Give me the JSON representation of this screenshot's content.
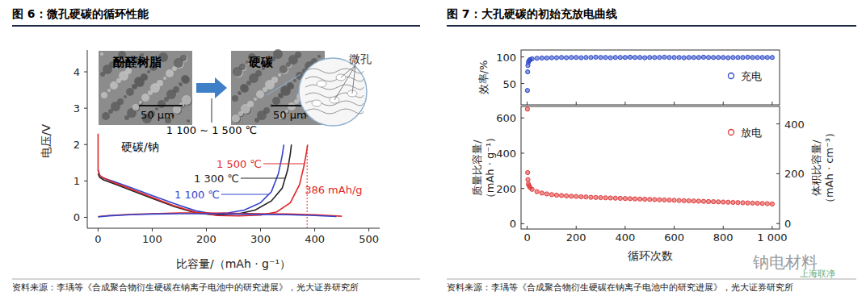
{
  "chart_data": [
    {
      "type": "line",
      "title": "图 6：微孔硬碳的循环性能",
      "source": "资料来源：李瑀等《合成聚合物衍生硬碳在钠离子电池中的研究进展》，光大证券研究所",
      "xlabel": "比容量/（mAh · g⁻¹）",
      "ylabel": "电压/V",
      "xlim": [
        -20,
        520
      ],
      "xticks": [
        0,
        100,
        200,
        300,
        400,
        500
      ],
      "ylim": [
        -0.3,
        4.6
      ],
      "yticks": [
        0,
        1,
        2,
        3,
        4
      ],
      "series": [
        {
          "name": "1 100 ℃",
          "color": "#3344cc",
          "x": [
            0,
            3,
            10,
            30,
            60,
            100,
            140,
            180,
            210,
            240,
            270,
            300,
            320,
            333,
            340,
            343
          ],
          "values": [
            1.3,
            1.15,
            1.08,
            0.98,
            0.82,
            0.6,
            0.38,
            0.18,
            0.1,
            0.12,
            0.2,
            0.4,
            0.7,
            1.2,
            1.7,
            2.0
          ]
        },
        {
          "name": "1 300 ℃",
          "color": "#222222",
          "x": [
            0,
            3,
            10,
            30,
            60,
            100,
            140,
            180,
            220,
            260,
            290,
            320,
            340,
            350,
            355,
            357
          ],
          "values": [
            1.2,
            1.1,
            1.03,
            0.92,
            0.75,
            0.52,
            0.3,
            0.12,
            0.06,
            0.1,
            0.2,
            0.45,
            0.8,
            1.3,
            1.75,
            2.0
          ]
        },
        {
          "name": "1 500 ℃",
          "color": "#e02828",
          "x": [
            0,
            0,
            3,
            10,
            30,
            60,
            100,
            140,
            180,
            220,
            260,
            300,
            330,
            355,
            372,
            380,
            385,
            387
          ],
          "values": [
            2.3,
            1.3,
            1.15,
            1.08,
            0.95,
            0.78,
            0.55,
            0.32,
            0.14,
            0.05,
            0.04,
            0.06,
            0.15,
            0.4,
            0.9,
            1.4,
            1.8,
            2.0
          ]
        },
        {
          "color": "#e02828",
          "x": [
            0,
            20,
            60,
            100,
            150,
            200,
            250,
            300,
            350,
            400,
            450
          ],
          "values": [
            0.02,
            0.05,
            0.08,
            0.1,
            0.12,
            0.12,
            0.11,
            0.1,
            0.09,
            0.07,
            0.03
          ]
        },
        {
          "color": "#3344cc",
          "x": [
            0,
            20,
            60,
            100,
            150,
            200,
            250,
            300,
            350,
            400,
            440
          ],
          "values": [
            0.01,
            0.04,
            0.07,
            0.09,
            0.1,
            0.1,
            0.09,
            0.08,
            0.07,
            0.05,
            0.02
          ]
        }
      ],
      "annotations": [
        {
          "text": "386 mAh/g",
          "x": 386,
          "color": "#e02828"
        }
      ],
      "inset": {
        "left_label": "酚醛树脂",
        "right_label": "硬碳",
        "scale_bar": "50 μm",
        "pore_label": "微孔",
        "process": "1 100 ~ 1 500 ℃",
        "system": "硬碳/钠"
      }
    },
    {
      "type": "scatter",
      "title": "图 7：大孔硬碳的初始充放电曲线",
      "source": "资料来源：李瑀等《合成聚合物衍生硬碳在钠离子电池中的研究进展》，光大证券研究所",
      "ylabel": "效率/%",
      "xlim": [
        -25,
        1030
      ],
      "xticks": [
        0,
        200,
        400,
        600,
        800,
        {
          "value": 1000,
          "label": "1 000"
        }
      ],
      "ylim": [
        10,
        113
      ],
      "yticks": [
        50,
        100
      ],
      "tick_labels": "y",
      "legend": "upper right",
      "x": [
        1,
        2,
        3,
        5,
        8,
        12,
        20,
        40,
        60,
        80,
        100,
        120,
        140,
        160,
        180,
        200,
        220,
        240,
        260,
        280,
        300,
        320,
        340,
        360,
        380,
        400,
        420,
        440,
        460,
        480,
        500,
        520,
        540,
        560,
        580,
        600,
        620,
        640,
        660,
        680,
        700,
        720,
        740,
        760,
        780,
        800,
        820,
        840,
        860,
        880,
        900,
        920,
        940,
        960,
        980,
        1000
      ],
      "series": [
        {
          "name": "充电",
          "color": "#2a48c8",
          "marker": "o",
          "values": [
            37,
            72,
            84,
            90,
            93,
            95,
            96.5,
            97.5,
            98,
            98,
            98.5,
            98.5,
            99,
            98.5,
            99,
            99,
            98.5,
            99,
            99,
            99.5,
            99,
            99,
            98.5,
            99,
            99,
            99,
            99.5,
            99,
            99,
            98.5,
            99,
            99,
            99,
            99.5,
            99,
            99,
            99,
            98.5,
            99,
            99,
            99,
            99.5,
            99,
            99,
            99,
            99,
            98.5,
            99,
            99,
            99,
            99.5,
            99,
            99,
            99,
            99,
            99
          ]
        }
      ]
    },
    {
      "type": "scatter",
      "xlabel": "循环次数",
      "ylabel": "质量比容量/\n（mAh · g⁻¹）",
      "y2label": "体积比容量/\n（mAh · cm⁻³）",
      "xlim": [
        -25,
        1030
      ],
      "xticks": [
        0,
        200,
        400,
        600,
        800,
        {
          "value": 1000,
          "label": "1 000"
        }
      ],
      "ylim": [
        -30,
        665
      ],
      "yticks": [
        0,
        200,
        400,
        600
      ],
      "y2lim": [
        -22,
        470
      ],
      "y2ticks": [
        0,
        200,
        400
      ],
      "legend": "upper right",
      "x": [
        1,
        2,
        3,
        5,
        8,
        12,
        20,
        40,
        60,
        80,
        100,
        120,
        140,
        160,
        180,
        200,
        220,
        240,
        260,
        280,
        300,
        320,
        340,
        360,
        380,
        400,
        420,
        440,
        460,
        480,
        500,
        520,
        540,
        560,
        580,
        600,
        620,
        640,
        660,
        680,
        700,
        720,
        740,
        760,
        780,
        800,
        820,
        840,
        860,
        880,
        900,
        920,
        940,
        960,
        980,
        1000
      ],
      "series": [
        {
          "name": "放电",
          "color": "#e03a3a",
          "marker": "o",
          "values": [
            650,
            290,
            250,
            225,
            215,
            205,
            195,
            182,
            174,
            169,
            165,
            162,
            160,
            158,
            156,
            155,
            153,
            152,
            150,
            149,
            148,
            147,
            146,
            145,
            144,
            143,
            142,
            141,
            140,
            139,
            138,
            137,
            136,
            135,
            134,
            133,
            132,
            131,
            130,
            129,
            128,
            127,
            126,
            125,
            124,
            123,
            122,
            121,
            120,
            119,
            118,
            117,
            116,
            115,
            114,
            112
          ]
        }
      ]
    }
  ],
  "watermark": [
    "钠电材料",
    "上海联净"
  ]
}
